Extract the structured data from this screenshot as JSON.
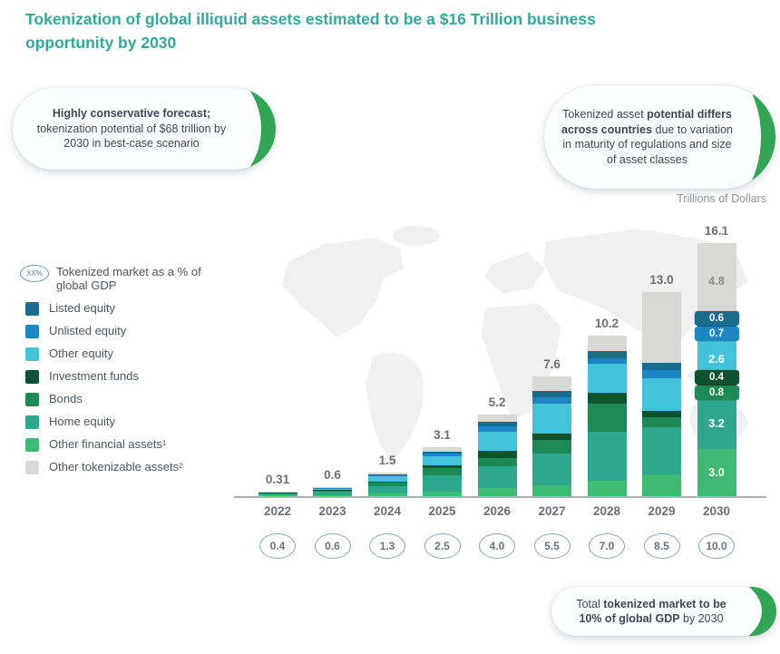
{
  "title": "Tokenization of global illiquid assets estimated to be a $16 Trillion business opportunity by 2030",
  "unit_label": "Trillions of Dollars",
  "colors": {
    "title_teal": "#2faa9b",
    "callout_green": "#31a553",
    "axis_gray": "#aab0b6",
    "map_gray": "#f0f0f0"
  },
  "callouts": {
    "top_left": {
      "segments": [
        {
          "text": "Highly conservative forecast;",
          "bold": true
        },
        {
          "text": " tokenization potential of $68 trillion by 2030 in best-case scenario",
          "bold": false
        }
      ]
    },
    "top_right": {
      "segments": [
        {
          "text": "Tokenized asset ",
          "bold": false
        },
        {
          "text": "potential differs across countries",
          "bold": true
        },
        {
          "text": " due to variation in maturity of regulations and size of asset classes",
          "bold": false
        }
      ]
    },
    "bottom_right": {
      "segments": [
        {
          "text": "Total ",
          "bold": false
        },
        {
          "text": "tokenized market to be 10% of global GDP",
          "bold": true
        },
        {
          "text": " by 2030",
          "bold": false
        }
      ]
    }
  },
  "legend": {
    "gdp_item": {
      "icon_text": "XX%",
      "label": "Tokenized market as a % of global GDP"
    },
    "items": [
      {
        "label": "Listed equity",
        "color": "#1a6c8c"
      },
      {
        "label": "Unlisted equity",
        "color": "#1f86c4"
      },
      {
        "label": "Other equity",
        "color": "#43c3da"
      },
      {
        "label": "Investment funds",
        "color": "#0e5330"
      },
      {
        "label": "Bonds",
        "color": "#1d8a55"
      },
      {
        "label": "Home equity",
        "color": "#2da78d"
      },
      {
        "label": "Other financial assets¹",
        "color": "#3fba72"
      },
      {
        "label": "Other tokenizable assets²",
        "color": "#d8d8d5"
      }
    ]
  },
  "chart_data": {
    "type": "bar",
    "stacked": true,
    "title": "Tokenization of global illiquid assets estimated to be a $16 Trillion business opportunity by 2030",
    "ylabel": "Trillions of Dollars",
    "ylim": [
      0,
      17
    ],
    "grid": false,
    "legend_position": "left",
    "categories": [
      "2022",
      "2023",
      "2024",
      "2025",
      "2026",
      "2027",
      "2028",
      "2029",
      "2030"
    ],
    "totals": [
      0.31,
      0.6,
      1.5,
      3.1,
      5.2,
      7.6,
      10.2,
      13.0,
      16.1
    ],
    "total_labels": [
      "0.31",
      "0.6",
      "1.5",
      "3.1",
      "5.2",
      "7.6",
      "10.2",
      "13.0",
      "16.1"
    ],
    "gdp_percent_of_global_gdp": [
      "0.4",
      "0.6",
      "1.3",
      "2.5",
      "4.0",
      "5.5",
      "7.0",
      "8.5",
      "10.0"
    ],
    "series_note": "bottom-to-top stacking order; only 2030 segments are labeled in the figure, earlier years estimated from bar heights",
    "series": [
      {
        "name": "Other financial assets",
        "color": "#3fba72",
        "values": [
          0.04,
          0.07,
          0.15,
          0.3,
          0.5,
          0.7,
          1.0,
          1.4,
          3.0
        ]
      },
      {
        "name": "Home equity",
        "color": "#2da78d",
        "values": [
          0.14,
          0.22,
          0.5,
          1.0,
          1.4,
          2.0,
          3.1,
          3.0,
          3.2
        ]
      },
      {
        "name": "Bonds",
        "color": "#1d8a55",
        "values": [
          0.03,
          0.08,
          0.25,
          0.5,
          0.5,
          0.9,
          1.8,
          0.6,
          0.8
        ]
      },
      {
        "name": "Investment funds",
        "color": "#0e5330",
        "values": [
          0.01,
          0.02,
          0.05,
          0.15,
          0.5,
          0.4,
          0.7,
          0.4,
          0.4
        ]
      },
      {
        "name": "Other equity",
        "color": "#43c3da",
        "values": [
          0.05,
          0.1,
          0.3,
          0.6,
          1.2,
          1.9,
          1.8,
          2.1,
          2.6
        ]
      },
      {
        "name": "Unlisted equity",
        "color": "#1f86c4",
        "values": [
          0.01,
          0.03,
          0.08,
          0.15,
          0.35,
          0.4,
          0.4,
          0.5,
          0.7
        ]
      },
      {
        "name": "Listed equity",
        "color": "#1a6c8c",
        "values": [
          0.01,
          0.03,
          0.07,
          0.15,
          0.3,
          0.4,
          0.45,
          0.5,
          0.6
        ]
      },
      {
        "name": "Other tokenizable assets",
        "color": "#d8d8d5",
        "values": [
          0.02,
          0.05,
          0.1,
          0.25,
          0.45,
          0.9,
          0.95,
          4.5,
          4.8
        ]
      }
    ],
    "labeled_year": "2030",
    "labeled_year_segment_labels": [
      "3.0",
      "3.2",
      "0.8",
      "0.4",
      "2.6",
      "0.7",
      "0.6",
      "4.8"
    ]
  }
}
